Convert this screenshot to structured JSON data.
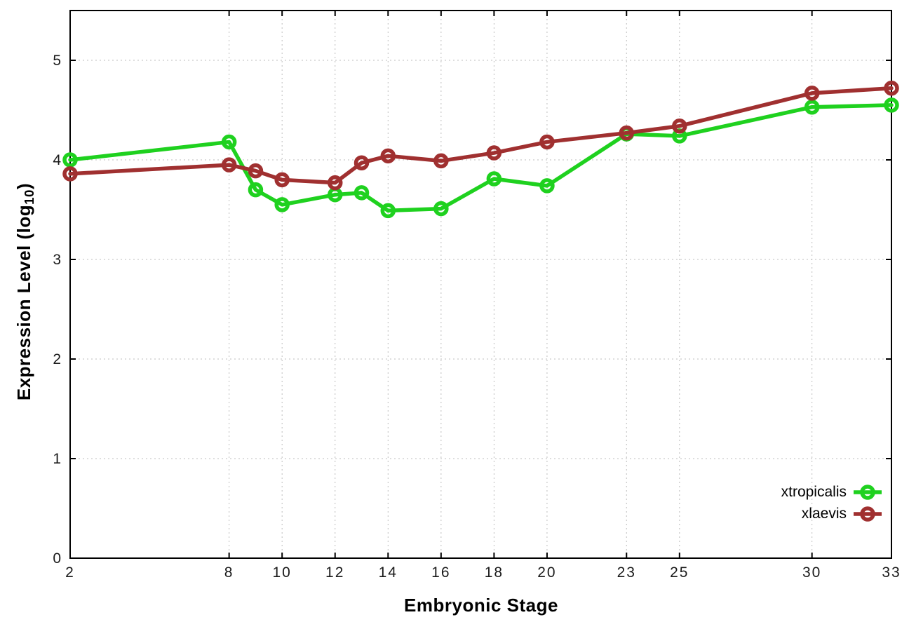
{
  "figure": {
    "xlabel": "Embryonic Stage",
    "ylabel": {
      "main": "Expression Level (log",
      "sub": "10",
      "close": ")"
    }
  },
  "chart_data": {
    "type": "line",
    "x": [
      2,
      8,
      9,
      10,
      12,
      13,
      14,
      16,
      18,
      20,
      23,
      25,
      30,
      33
    ],
    "series": [
      {
        "name": "xtropicalis",
        "color": "#1fd11f",
        "values": [
          4.0,
          4.18,
          3.7,
          3.55,
          3.65,
          3.67,
          3.49,
          3.51,
          3.81,
          3.74,
          4.26,
          4.24,
          4.53,
          4.55
        ]
      },
      {
        "name": "xlaevis",
        "color": "#a03030",
        "values": [
          3.86,
          3.95,
          3.89,
          3.8,
          3.77,
          3.97,
          4.04,
          3.99,
          4.07,
          4.18,
          4.27,
          4.34,
          4.67,
          4.72
        ]
      }
    ],
    "xlabel": "Embryonic Stage",
    "ylabel": "Expression Level (log10)",
    "xticks": [
      2,
      8,
      10,
      12,
      14,
      16,
      18,
      20,
      23,
      25,
      30,
      33
    ],
    "yticks": [
      0,
      1,
      2,
      3,
      4,
      5
    ],
    "xlim": [
      2,
      33
    ],
    "ylim": [
      0,
      5.5
    ],
    "grid": true,
    "grid_style": "dotted",
    "marker": "open-circle",
    "legend_position": "inside-bottom-right",
    "colors": {
      "axis": "#000000",
      "grid": "#bdbdbd",
      "tick_text": "#1a1a1a"
    }
  }
}
